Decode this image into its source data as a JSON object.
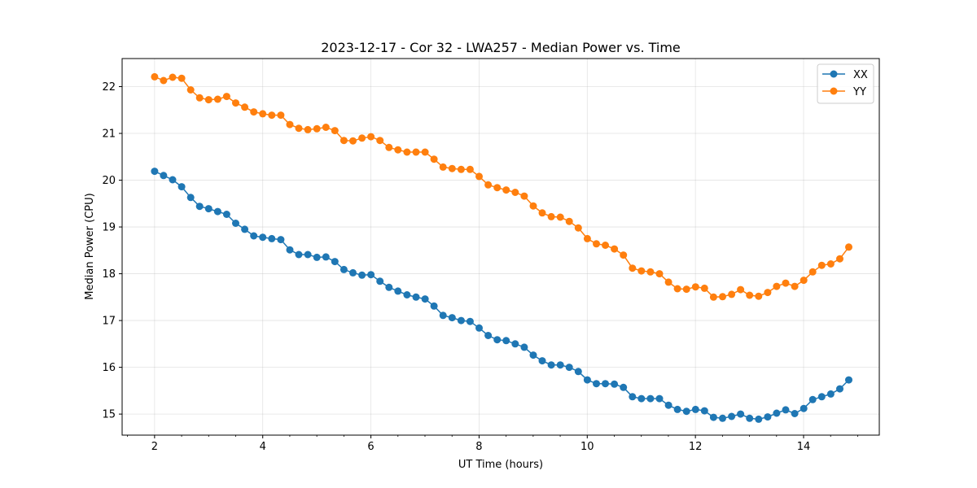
{
  "chart_data": {
    "type": "line",
    "title": "2023-12-17 - Cor 32 - LWA257 - Median Power vs. Time",
    "xlabel": "UT Time (hours)",
    "ylabel": "Median Power (CPU)",
    "xlim": [
      1.4,
      15.4
    ],
    "ylim": [
      14.55,
      22.6
    ],
    "xticks": [
      2,
      4,
      6,
      8,
      10,
      12,
      14
    ],
    "xticklabels": [
      "2",
      "4",
      "6",
      "8",
      "10",
      "12",
      "14"
    ],
    "xminorticks": [
      1.5,
      2.5,
      3,
      3.5,
      4.5,
      5,
      5.5,
      6.5,
      7,
      7.5,
      8.5,
      9,
      9.5,
      10.5,
      11,
      11.5,
      12.5,
      13,
      13.5,
      14.5,
      15
    ],
    "yticks": [
      15,
      16,
      17,
      18,
      19,
      20,
      21,
      22
    ],
    "yticklabels": [
      "15",
      "16",
      "17",
      "18",
      "19",
      "20",
      "21",
      "22"
    ],
    "grid": true,
    "legend": "top-right",
    "x_start": 2.0,
    "x_step": 0.1667,
    "series": [
      {
        "name": "XX",
        "color": "#1f77b4",
        "marker": "circle",
        "values": [
          20.19,
          20.1,
          20.01,
          19.86,
          19.63,
          19.44,
          19.39,
          19.33,
          19.27,
          19.08,
          18.95,
          18.81,
          18.78,
          18.75,
          18.73,
          18.51,
          18.41,
          18.41,
          18.35,
          18.36,
          18.26,
          18.09,
          18.02,
          17.97,
          17.98,
          17.84,
          17.71,
          17.63,
          17.55,
          17.5,
          17.46,
          17.31,
          17.11,
          17.06,
          17.0,
          16.98,
          16.84,
          16.68,
          16.59,
          16.57,
          16.5,
          16.43,
          16.26,
          16.14,
          16.05,
          16.05,
          16.0,
          15.91,
          15.73,
          15.65,
          15.65,
          15.64,
          15.57,
          15.37,
          15.33,
          15.33,
          15.33,
          15.19,
          15.1,
          15.06,
          15.1,
          15.07,
          14.93,
          14.91,
          14.95,
          15.0,
          14.91,
          14.89,
          14.94,
          15.02,
          15.09,
          15.01,
          15.12,
          15.31,
          15.37,
          15.43,
          15.54,
          15.73
        ]
      },
      {
        "name": "YY",
        "color": "#ff7f0e",
        "marker": "circle",
        "values": [
          22.21,
          22.13,
          22.2,
          22.18,
          21.93,
          21.76,
          21.72,
          21.73,
          21.79,
          21.65,
          21.56,
          21.46,
          21.42,
          21.39,
          21.39,
          21.19,
          21.11,
          21.08,
          21.1,
          21.13,
          21.06,
          20.85,
          20.84,
          20.9,
          20.93,
          20.85,
          20.7,
          20.65,
          20.6,
          20.6,
          20.6,
          20.45,
          20.28,
          20.25,
          20.23,
          20.23,
          20.08,
          19.9,
          19.84,
          19.79,
          19.74,
          19.66,
          19.45,
          19.3,
          19.22,
          19.21,
          19.12,
          18.98,
          18.75,
          18.64,
          18.61,
          18.53,
          18.4,
          18.12,
          18.06,
          18.04,
          18.0,
          17.82,
          17.68,
          17.67,
          17.72,
          17.69,
          17.5,
          17.51,
          17.56,
          17.66,
          17.54,
          17.52,
          17.6,
          17.73,
          17.8,
          17.73,
          17.86,
          18.04,
          18.18,
          18.21,
          18.32,
          18.57
        ]
      }
    ]
  }
}
